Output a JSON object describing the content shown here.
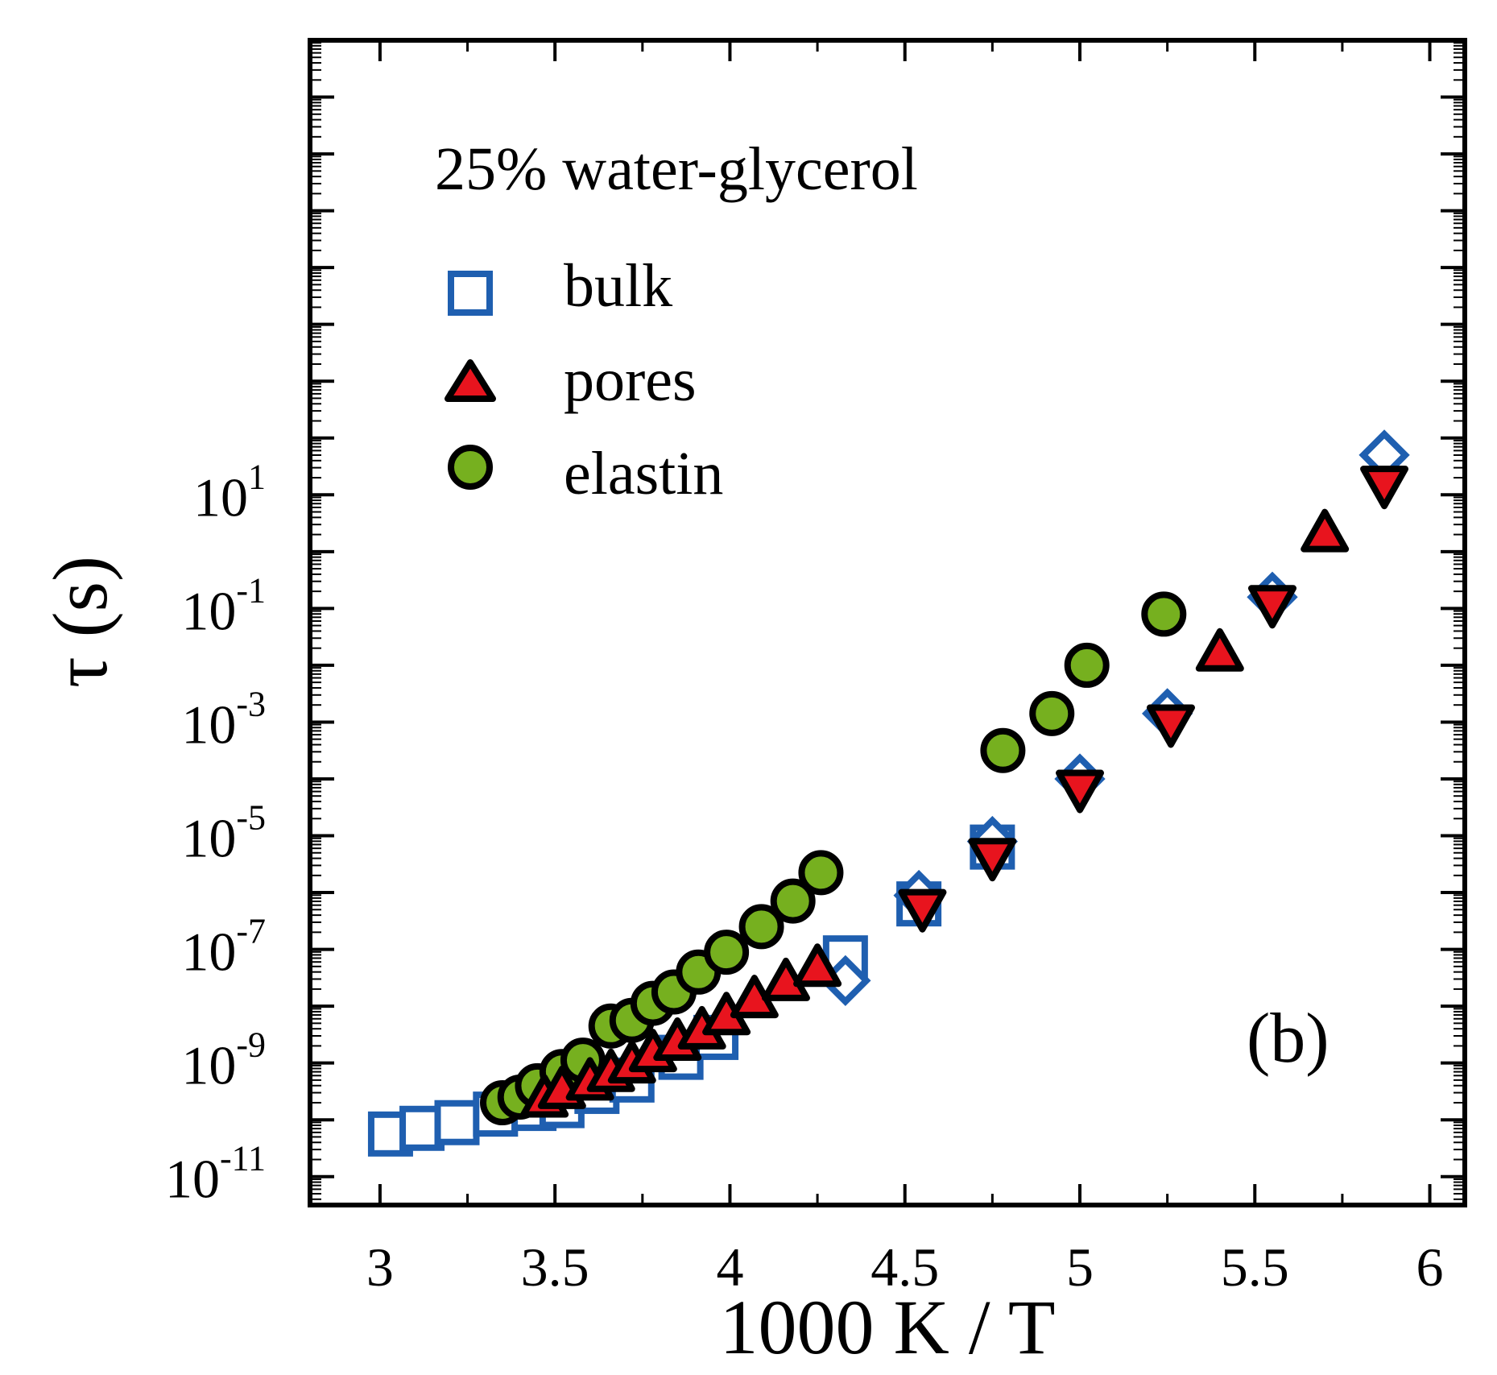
{
  "chart_data": {
    "type": "scatter",
    "title": "25% water-glycerol",
    "panel_label": "(b)",
    "xlabel": "1000 K / T",
    "ylabel": "τ (s)",
    "xlim": [
      2.8,
      6.1
    ],
    "ylim_log10": [
      -11.5,
      9.0
    ],
    "yscale": "log",
    "x_ticks": [
      {
        "value": 3,
        "label": "3"
      },
      {
        "value": 3.5,
        "label": "3.5"
      },
      {
        "value": 4,
        "label": "4"
      },
      {
        "value": 4.5,
        "label": "4.5"
      },
      {
        "value": 5,
        "label": "5"
      },
      {
        "value": 5.5,
        "label": "5.5"
      },
      {
        "value": 6,
        "label": "6"
      }
    ],
    "y_ticks": [
      {
        "log10": -11,
        "base": "10",
        "exp": "-11"
      },
      {
        "log10": -9,
        "base": "10",
        "exp": "-9"
      },
      {
        "log10": -7,
        "base": "10",
        "exp": "-7"
      },
      {
        "log10": -5,
        "base": "10",
        "exp": "-5"
      },
      {
        "log10": -3,
        "base": "10",
        "exp": "-3"
      },
      {
        "log10": -1,
        "base": "10",
        "exp": "-1"
      },
      {
        "log10": 1,
        "base": "10",
        "exp": "1"
      }
    ],
    "legend": [
      {
        "label": "bulk",
        "marker": "square"
      },
      {
        "label": "pores",
        "marker": "triangle"
      },
      {
        "label": "elastin",
        "marker": "circle"
      }
    ],
    "series": [
      {
        "name": "bulk",
        "marker": "square",
        "color": "#1f5fb0",
        "points": [
          [
            3.03,
            -10.25
          ],
          [
            3.12,
            -10.15
          ],
          [
            3.22,
            -10.05
          ],
          [
            3.33,
            -9.9
          ],
          [
            3.44,
            -9.8
          ],
          [
            3.52,
            -9.75
          ],
          [
            3.62,
            -9.5
          ],
          [
            3.72,
            -9.3
          ],
          [
            3.86,
            -8.9
          ],
          [
            3.96,
            -8.55
          ],
          [
            4.33,
            -7.15
          ],
          [
            4.54,
            -6.2
          ],
          [
            4.75,
            -5.2
          ]
        ]
      },
      {
        "name": "bulk (diamond)",
        "marker": "diamond",
        "color": "#1f5fb0",
        "points": [
          [
            4.33,
            -7.55
          ],
          [
            4.54,
            -6.05
          ],
          [
            4.75,
            -5.1
          ],
          [
            5.0,
            -4.0
          ],
          [
            5.25,
            -2.85
          ],
          [
            5.55,
            -0.8
          ],
          [
            5.87,
            1.7
          ]
        ]
      },
      {
        "name": "pores",
        "marker": "triangle",
        "color": "#e8141e",
        "points": [
          [
            3.47,
            -9.65
          ],
          [
            3.52,
            -9.5
          ],
          [
            3.6,
            -9.35
          ],
          [
            3.66,
            -9.2
          ],
          [
            3.72,
            -9.05
          ],
          [
            3.78,
            -8.85
          ],
          [
            3.85,
            -8.65
          ],
          [
            3.92,
            -8.45
          ],
          [
            3.99,
            -8.2
          ],
          [
            4.07,
            -7.9
          ],
          [
            4.16,
            -7.6
          ],
          [
            4.25,
            -7.35
          ],
          [
            5.4,
            -1.8
          ],
          [
            5.7,
            0.3
          ]
        ]
      },
      {
        "name": "pores (inverted)",
        "marker": "triangle-down",
        "color": "#e8141e",
        "points": [
          [
            4.55,
            -6.25
          ],
          [
            4.75,
            -5.35
          ],
          [
            5.0,
            -4.15
          ],
          [
            5.26,
            -3.0
          ],
          [
            5.55,
            -0.9
          ],
          [
            5.87,
            1.2
          ]
        ]
      },
      {
        "name": "elastin",
        "marker": "circle",
        "color": "#76b01f",
        "points": [
          [
            3.35,
            -9.7
          ],
          [
            3.4,
            -9.6
          ],
          [
            3.45,
            -9.4
          ],
          [
            3.52,
            -9.15
          ],
          [
            3.58,
            -8.95
          ],
          [
            3.66,
            -8.35
          ],
          [
            3.72,
            -8.25
          ],
          [
            3.78,
            -7.95
          ],
          [
            3.84,
            -7.75
          ],
          [
            3.91,
            -7.4
          ],
          [
            3.99,
            -7.05
          ],
          [
            4.09,
            -6.6
          ],
          [
            4.18,
            -6.15
          ],
          [
            4.26,
            -5.65
          ],
          [
            4.78,
            -3.5
          ],
          [
            4.92,
            -2.85
          ],
          [
            5.02,
            -2.0
          ],
          [
            5.24,
            -1.1
          ]
        ]
      }
    ]
  }
}
